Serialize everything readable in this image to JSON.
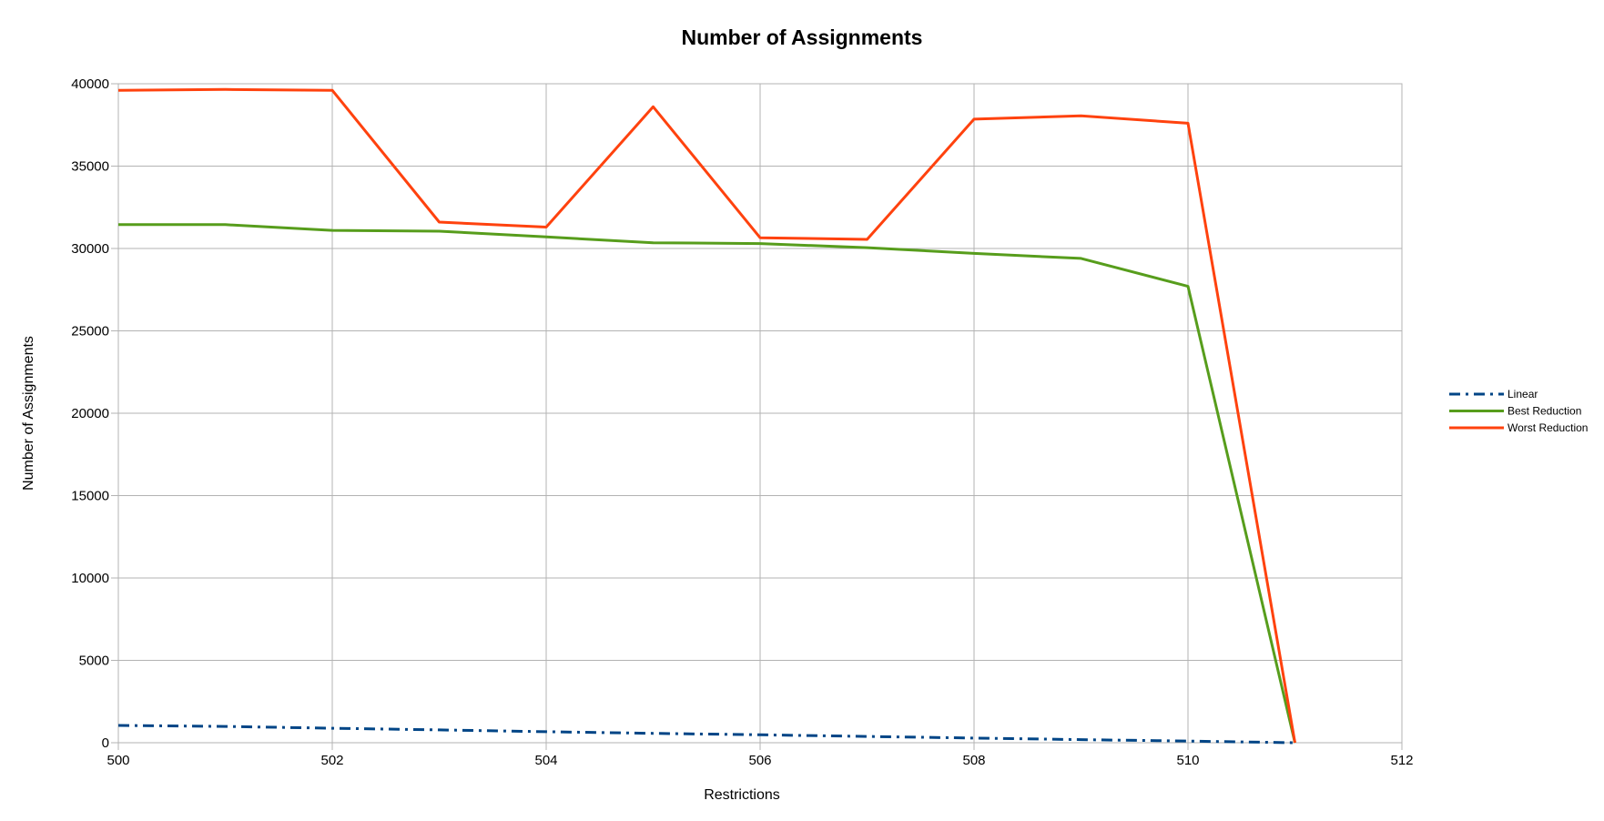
{
  "chart_data": {
    "type": "line",
    "title": "Number of Assignments",
    "xlabel": "Restrictions",
    "ylabel": "Number of Assignments",
    "xlim": [
      500,
      512
    ],
    "ylim": [
      0,
      40000
    ],
    "x_ticks": [
      500,
      502,
      504,
      506,
      508,
      510,
      512
    ],
    "y_ticks": [
      0,
      5000,
      10000,
      15000,
      20000,
      25000,
      30000,
      35000,
      40000
    ],
    "grid": true,
    "legend_position": "right",
    "x": [
      500,
      501,
      502,
      503,
      504,
      505,
      506,
      507,
      508,
      509,
      510,
      511
    ],
    "series": [
      {
        "name": "Linear",
        "color": "#004586",
        "style": "dash-dot",
        "values": [
          1050,
          990,
          880,
          780,
          670,
          570,
          480,
          380,
          280,
          190,
          100,
          0
        ]
      },
      {
        "name": "Best Reduction",
        "color": "#579d1c",
        "style": "solid",
        "values": [
          31450,
          31450,
          31100,
          31050,
          30700,
          30350,
          30300,
          30050,
          29700,
          29400,
          27700,
          0
        ]
      },
      {
        "name": "Worst Reduction",
        "color": "#ff420e",
        "style": "solid",
        "values": [
          39600,
          39650,
          39600,
          31600,
          31300,
          38600,
          30650,
          30550,
          37850,
          38050,
          37600,
          0
        ]
      }
    ]
  }
}
